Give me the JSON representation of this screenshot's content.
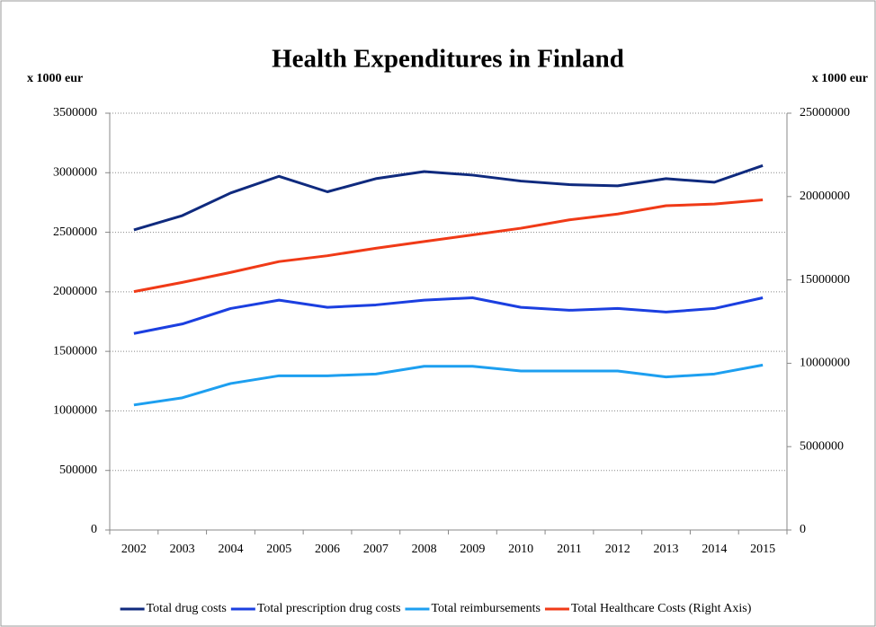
{
  "chart_data": {
    "type": "line",
    "title": "Health Expenditures in Finland",
    "y_label": "x 1000 eur",
    "y2_label": "x 1000 eur",
    "categories": [
      "2002",
      "2003",
      "2004",
      "2005",
      "2006",
      "2007",
      "2008",
      "2009",
      "2010",
      "2011",
      "2012",
      "2013",
      "2014",
      "2015"
    ],
    "series": [
      {
        "name": "Total drug costs",
        "color": "#0f2a7e",
        "values": [
          2520000,
          2640000,
          2830000,
          2970000,
          2840000,
          2950000,
          3010000,
          2980000,
          2930000,
          2900000,
          2890000,
          2950000,
          2920000,
          3060000
        ]
      },
      {
        "name": "Total prescription drug costs",
        "color": "#1b3fe0",
        "values": [
          1650000,
          1730000,
          1860000,
          1930000,
          1870000,
          1890000,
          1930000,
          1950000,
          1870000,
          1845000,
          1860000,
          1830000,
          1860000,
          1950000
        ]
      },
      {
        "name": "Total reimbursements",
        "color": "#1d9ff0",
        "values": [
          1050000,
          1110000,
          1230000,
          1295000,
          1295000,
          1310000,
          1375000,
          1375000,
          1335000,
          1335000,
          1335000,
          1285000,
          1310000,
          1385000
        ]
      },
      {
        "name": "Total Healthcare Costs (Right Axis)",
        "color": "#f03a17",
        "axis": "y2",
        "values": [
          14300000,
          14850000,
          15450000,
          16100000,
          16450000,
          16900000,
          17300000,
          17700000,
          18100000,
          18600000,
          18950000,
          19450000,
          19550000,
          19800000
        ]
      }
    ],
    "ylim": [
      0,
      3500000
    ],
    "yticks": [
      0,
      500000,
      1000000,
      1500000,
      2000000,
      2500000,
      3000000,
      3500000
    ],
    "y2lim": [
      0,
      25000000
    ],
    "y2ticks": [
      0,
      5000000,
      10000000,
      15000000,
      20000000,
      25000000
    ],
    "grid": true,
    "legend": "bottom"
  }
}
